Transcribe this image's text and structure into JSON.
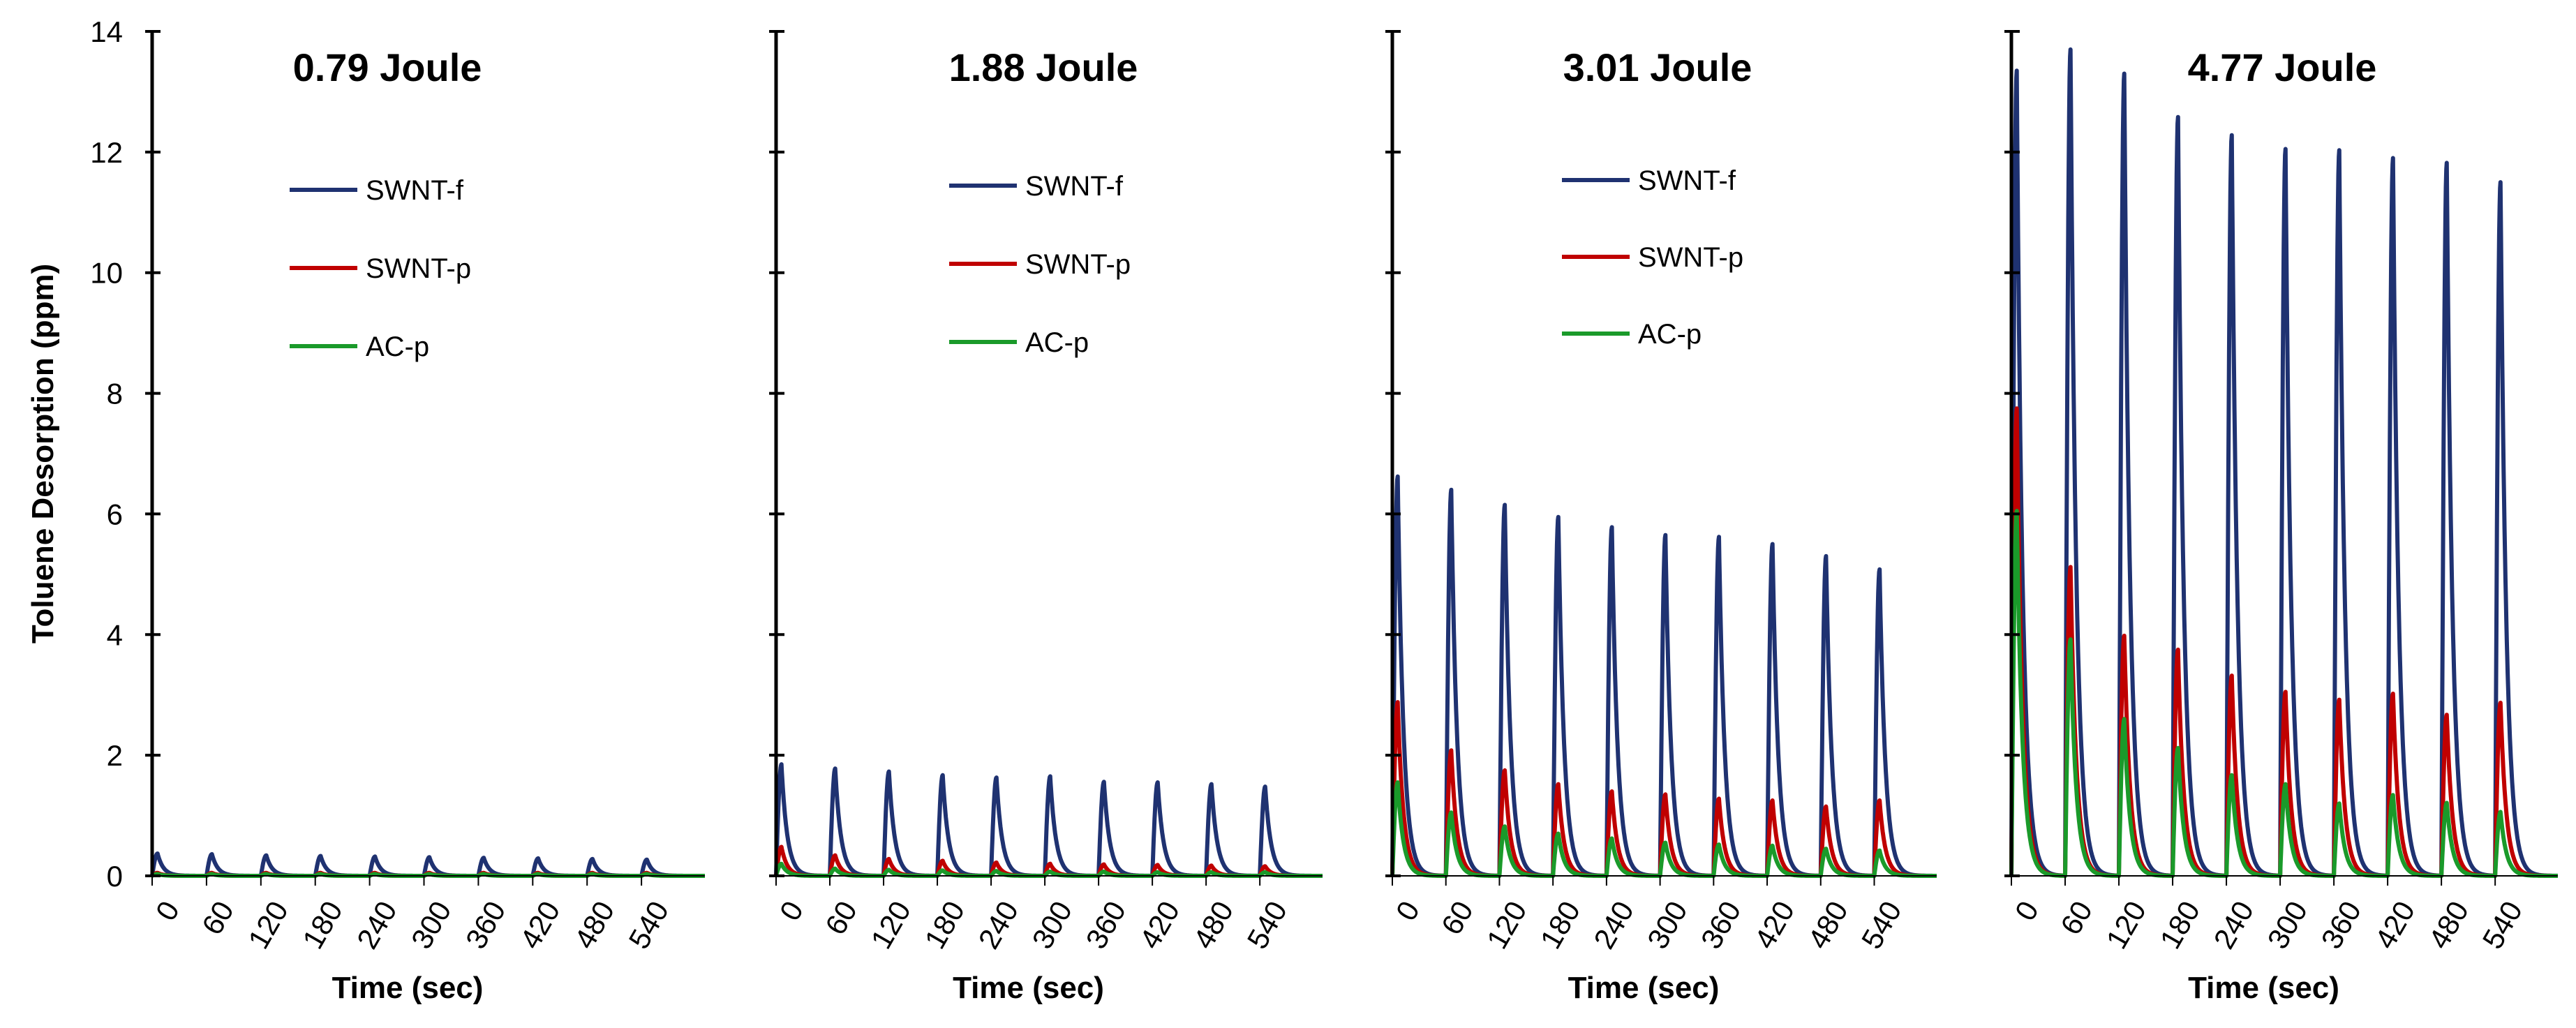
{
  "chart_data": [
    {
      "type": "line",
      "title": "0.79 Joule",
      "xlabel": "Time (sec)",
      "ylabel": "Toluene Desorption (ppm)",
      "xlim": [
        0,
        610
      ],
      "ylim": [
        0,
        14
      ],
      "xticks": [
        0,
        60,
        120,
        180,
        240,
        300,
        360,
        420,
        480,
        540
      ],
      "xtick_labels": [
        "0",
        "60",
        "120",
        "180",
        "240",
        "300",
        "360",
        "420",
        "480",
        "540"
      ],
      "yticks": [
        0,
        2,
        4,
        6,
        8,
        10,
        12,
        14
      ],
      "ytick_labels": [
        "0",
        "2",
        "4",
        "6",
        "8",
        "10",
        "12",
        "14"
      ],
      "legend_position": "upper-center",
      "pulse_times": [
        0,
        60,
        120,
        180,
        240,
        300,
        360,
        420,
        480,
        540
      ],
      "series": [
        {
          "name": "SWNT-f",
          "color": "#1f3271",
          "peaks": [
            0.37,
            0.36,
            0.34,
            0.33,
            0.32,
            0.31,
            0.3,
            0.29,
            0.28,
            0.27
          ]
        },
        {
          "name": "SWNT-p",
          "color": "#c00000",
          "peaks": [
            0.05,
            0.05,
            0.05,
            0.05,
            0.05,
            0.05,
            0.05,
            0.05,
            0.05,
            0.05
          ]
        },
        {
          "name": "AC-p",
          "color": "#1a9a2a",
          "peaks": [
            0.03,
            0.03,
            0.03,
            0.03,
            0.03,
            0.03,
            0.03,
            0.03,
            0.03,
            0.03
          ]
        }
      ]
    },
    {
      "type": "line",
      "title": "1.88 Joule",
      "xlabel": "Time (sec)",
      "ylabel": "",
      "xlim": [
        0,
        610
      ],
      "ylim": [
        0,
        14
      ],
      "xticks": [
        0,
        60,
        120,
        180,
        240,
        300,
        360,
        420,
        480,
        540
      ],
      "xtick_labels": [
        "0",
        "60",
        "120",
        "180",
        "240",
        "300",
        "360",
        "420",
        "480",
        "540"
      ],
      "yticks": [
        0,
        2,
        4,
        6,
        8,
        10,
        12,
        14
      ],
      "ytick_labels": [],
      "legend_position": "upper-center",
      "pulse_times": [
        0,
        60,
        120,
        180,
        240,
        300,
        360,
        420,
        480,
        540
      ],
      "series": [
        {
          "name": "SWNT-f",
          "color": "#1f3271",
          "peaks": [
            1.85,
            1.78,
            1.73,
            1.67,
            1.63,
            1.65,
            1.56,
            1.55,
            1.52,
            1.48
          ]
        },
        {
          "name": "SWNT-p",
          "color": "#c00000",
          "peaks": [
            0.48,
            0.34,
            0.28,
            0.25,
            0.22,
            0.2,
            0.19,
            0.18,
            0.17,
            0.16
          ]
        },
        {
          "name": "AC-p",
          "color": "#1a9a2a",
          "peaks": [
            0.2,
            0.12,
            0.1,
            0.09,
            0.08,
            0.07,
            0.07,
            0.06,
            0.06,
            0.06
          ]
        }
      ]
    },
    {
      "type": "line",
      "title": "3.01 Joule",
      "xlabel": "Time (sec)",
      "ylabel": "",
      "xlim": [
        0,
        610
      ],
      "ylim": [
        0,
        14
      ],
      "xticks": [
        0,
        60,
        120,
        180,
        240,
        300,
        360,
        420,
        480,
        540
      ],
      "xtick_labels": [
        "0",
        "60",
        "120",
        "180",
        "240",
        "300",
        "360",
        "420",
        "480",
        "540"
      ],
      "yticks": [
        0,
        2,
        4,
        6,
        8,
        10,
        12,
        14
      ],
      "ytick_labels": [],
      "legend_position": "upper-center",
      "pulse_times": [
        0,
        60,
        120,
        180,
        240,
        300,
        360,
        420,
        480,
        540
      ],
      "series": [
        {
          "name": "SWNT-f",
          "color": "#1f3271",
          "peaks": [
            6.62,
            6.4,
            6.15,
            5.95,
            5.78,
            5.65,
            5.62,
            5.5,
            5.3,
            5.08
          ]
        },
        {
          "name": "SWNT-p",
          "color": "#c00000",
          "peaks": [
            2.88,
            2.08,
            1.75,
            1.52,
            1.4,
            1.35,
            1.28,
            1.25,
            1.15,
            1.25
          ]
        },
        {
          "name": "AC-p",
          "color": "#1a9a2a",
          "peaks": [
            1.55,
            1.05,
            0.82,
            0.7,
            0.62,
            0.55,
            0.52,
            0.5,
            0.45,
            0.42
          ]
        }
      ]
    },
    {
      "type": "line",
      "title": "4.77 Joule",
      "xlabel": "Time (sec)",
      "ylabel": "",
      "xlim": [
        0,
        610
      ],
      "ylim": [
        0,
        14
      ],
      "xticks": [
        0,
        60,
        120,
        180,
        240,
        300,
        360,
        420,
        480,
        540
      ],
      "xtick_labels": [
        "0",
        "60",
        "120",
        "180",
        "240",
        "300",
        "360",
        "420",
        "480",
        "540"
      ],
      "yticks": [
        0,
        2,
        4,
        6,
        8,
        10,
        12,
        14
      ],
      "ytick_labels": [],
      "legend_position": "none",
      "pulse_times": [
        0,
        60,
        120,
        180,
        240,
        300,
        360,
        420,
        480,
        540
      ],
      "series": [
        {
          "name": "SWNT-f",
          "color": "#1f3271",
          "peaks": [
            13.35,
            13.7,
            13.3,
            12.58,
            12.28,
            12.05,
            12.03,
            11.9,
            11.82,
            11.5
          ]
        },
        {
          "name": "SWNT-p",
          "color": "#c00000",
          "peaks": [
            7.75,
            5.12,
            3.98,
            3.75,
            3.32,
            3.05,
            2.92,
            3.02,
            2.67,
            2.87
          ]
        },
        {
          "name": "AC-p",
          "color": "#1a9a2a",
          "peaks": [
            6.05,
            3.92,
            2.6,
            2.12,
            1.67,
            1.52,
            1.2,
            1.34,
            1.21,
            1.06
          ]
        }
      ]
    }
  ]
}
